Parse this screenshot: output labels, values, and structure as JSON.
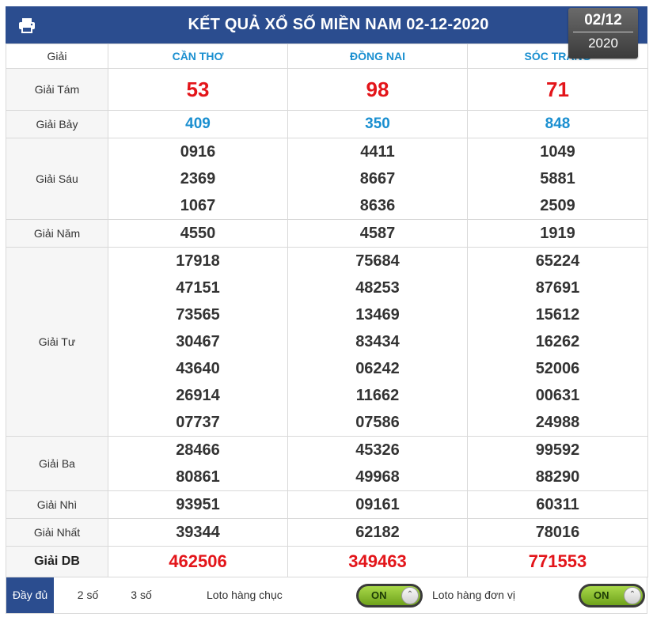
{
  "header": {
    "title": "KẾT QUẢ XỔ SỐ MIỀN NAM 02-12-2020",
    "date_day": "02/12",
    "date_year": "2020",
    "bg_color": "#2b4d8f",
    "print_icon": "printer-icon"
  },
  "table": {
    "col_header_label": "Giải",
    "provinces": [
      "CẦN THƠ",
      "ĐỒNG NAI",
      "SÓC TRĂNG"
    ],
    "prizes": {
      "g8": {
        "label": "Giải Tám",
        "values": [
          "53",
          "98",
          "71"
        ]
      },
      "g7": {
        "label": "Giải Bảy",
        "values": [
          "409",
          "350",
          "848"
        ]
      },
      "g6": {
        "label": "Giải Sáu",
        "values": [
          [
            "0916",
            "2369",
            "1067"
          ],
          [
            "4411",
            "8667",
            "8636"
          ],
          [
            "1049",
            "5881",
            "2509"
          ]
        ]
      },
      "g5": {
        "label": "Giải Năm",
        "values": [
          "4550",
          "4587",
          "1919"
        ]
      },
      "g4": {
        "label": "Giải Tư",
        "values": [
          [
            "17918",
            "47151",
            "73565",
            "30467",
            "43640",
            "26914",
            "07737"
          ],
          [
            "75684",
            "48253",
            "13469",
            "83434",
            "06242",
            "11662",
            "07586"
          ],
          [
            "65224",
            "87691",
            "15612",
            "16262",
            "52006",
            "00631",
            "24988"
          ]
        ]
      },
      "g3": {
        "label": "Giải Ba",
        "values": [
          [
            "28466",
            "80861"
          ],
          [
            "45326",
            "49968"
          ],
          [
            "99592",
            "88290"
          ]
        ]
      },
      "g2": {
        "label": "Giải Nhì",
        "values": [
          "93951",
          "09161",
          "60311"
        ]
      },
      "g1": {
        "label": "Giải Nhất",
        "values": [
          "39344",
          "62182",
          "78016"
        ]
      },
      "db": {
        "label": "Giải DB",
        "values": [
          "462506",
          "349463",
          "771553"
        ]
      }
    }
  },
  "footer": {
    "tabs": [
      "Đầy đủ",
      "2 số",
      "3 số"
    ],
    "loto_tens_label": "Loto hàng chục",
    "loto_units_label": "Loto hàng đơn vị",
    "toggle_on_label": "ON",
    "toggle_on_label_2": "ON"
  }
}
